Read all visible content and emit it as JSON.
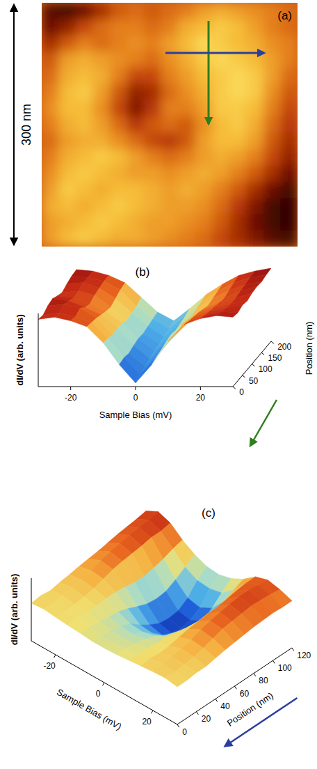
{
  "chart_data": [
    {
      "type": "heatmap",
      "title": "(a)",
      "annotations": [
        "300 nm"
      ],
      "zlim": [
        0,
        1
      ],
      "z": [
        [
          0.15,
          0.1,
          0.2,
          0.35,
          0.5,
          0.55,
          0.5,
          0.55,
          0.6,
          0.7,
          0.75,
          0.7,
          0.65,
          0.6,
          0.55
        ],
        [
          0.2,
          0.3,
          0.45,
          0.55,
          0.6,
          0.6,
          0.55,
          0.6,
          0.75,
          0.8,
          0.85,
          0.8,
          0.7,
          0.6,
          0.55
        ],
        [
          0.35,
          0.5,
          0.6,
          0.55,
          0.6,
          0.65,
          0.6,
          0.7,
          0.8,
          0.9,
          0.85,
          0.8,
          0.75,
          0.65,
          0.6
        ],
        [
          0.5,
          0.7,
          0.75,
          0.7,
          0.65,
          0.6,
          0.55,
          0.65,
          0.75,
          0.85,
          0.9,
          0.85,
          0.8,
          0.7,
          0.6
        ],
        [
          0.55,
          0.75,
          0.8,
          0.75,
          0.6,
          0.45,
          0.45,
          0.6,
          0.7,
          0.8,
          0.85,
          0.9,
          0.85,
          0.7,
          0.55
        ],
        [
          0.6,
          0.8,
          0.85,
          0.7,
          0.5,
          0.3,
          0.35,
          0.55,
          0.65,
          0.75,
          0.85,
          0.9,
          0.85,
          0.65,
          0.5
        ],
        [
          0.65,
          0.8,
          0.8,
          0.65,
          0.45,
          0.25,
          0.4,
          0.6,
          0.6,
          0.7,
          0.85,
          0.85,
          0.8,
          0.6,
          0.45
        ],
        [
          0.6,
          0.75,
          0.8,
          0.7,
          0.55,
          0.4,
          0.5,
          0.55,
          0.5,
          0.65,
          0.8,
          0.85,
          0.75,
          0.55,
          0.4
        ],
        [
          0.55,
          0.7,
          0.75,
          0.75,
          0.65,
          0.55,
          0.45,
          0.4,
          0.5,
          0.7,
          0.8,
          0.8,
          0.7,
          0.5,
          0.35
        ],
        [
          0.6,
          0.75,
          0.8,
          0.85,
          0.8,
          0.7,
          0.6,
          0.55,
          0.6,
          0.7,
          0.75,
          0.7,
          0.6,
          0.45,
          0.3
        ],
        [
          0.65,
          0.8,
          0.85,
          0.8,
          0.75,
          0.7,
          0.7,
          0.65,
          0.7,
          0.75,
          0.7,
          0.6,
          0.5,
          0.35,
          0.2
        ],
        [
          0.7,
          0.85,
          0.8,
          0.75,
          0.8,
          0.8,
          0.75,
          0.7,
          0.75,
          0.7,
          0.6,
          0.5,
          0.35,
          0.2,
          0.1
        ],
        [
          0.75,
          0.8,
          0.75,
          0.8,
          0.85,
          0.8,
          0.75,
          0.7,
          0.7,
          0.65,
          0.55,
          0.4,
          0.25,
          0.1,
          0.05
        ],
        [
          0.7,
          0.75,
          0.8,
          0.85,
          0.8,
          0.75,
          0.7,
          0.7,
          0.65,
          0.6,
          0.5,
          0.35,
          0.2,
          0.1,
          0.05
        ],
        [
          0.7,
          0.8,
          0.85,
          0.8,
          0.75,
          0.75,
          0.7,
          0.65,
          0.6,
          0.55,
          0.45,
          0.35,
          0.25,
          0.15,
          0.1
        ]
      ]
    },
    {
      "type": "surface",
      "title": "(b)",
      "xlabel": "Sample Bias (mV)",
      "ylabel": "Position (nm)",
      "zlabel": "dI/dV (arb. units)",
      "xlim": [
        -30,
        30
      ],
      "xticks": [
        -20,
        0,
        20
      ],
      "ylim": [
        0,
        200
      ],
      "yticks": [
        0,
        50,
        100,
        150,
        200
      ],
      "zlim": [
        0,
        1
      ],
      "x": [
        -30,
        -25,
        -20,
        -15,
        -10,
        -5,
        0,
        5,
        10,
        15,
        20,
        25,
        30
      ],
      "y": [
        0,
        25,
        50,
        75,
        100,
        125,
        150,
        175,
        200
      ],
      "z": [
        [
          0.92,
          0.95,
          0.9,
          0.82,
          0.6,
          0.3,
          0.05,
          0.3,
          0.62,
          0.85,
          0.93,
          0.97,
          0.95
        ],
        [
          0.9,
          0.93,
          0.88,
          0.8,
          0.58,
          0.32,
          0.1,
          0.33,
          0.6,
          0.82,
          0.9,
          0.95,
          0.93
        ],
        [
          0.95,
          0.97,
          0.92,
          0.78,
          0.55,
          0.3,
          0.12,
          0.35,
          0.58,
          0.8,
          0.88,
          0.92,
          0.96
        ],
        [
          0.97,
          0.94,
          0.85,
          0.75,
          0.57,
          0.33,
          0.15,
          0.38,
          0.62,
          0.78,
          0.86,
          0.9,
          0.94
        ],
        [
          0.93,
          0.9,
          0.82,
          0.72,
          0.55,
          0.35,
          0.18,
          0.4,
          0.6,
          0.75,
          0.84,
          0.9,
          0.97
        ],
        [
          0.9,
          0.92,
          0.86,
          0.7,
          0.52,
          0.34,
          0.2,
          0.38,
          0.58,
          0.72,
          0.82,
          0.92,
          0.98
        ],
        [
          0.94,
          0.96,
          0.88,
          0.74,
          0.54,
          0.36,
          0.22,
          0.4,
          0.6,
          0.74,
          0.85,
          0.93,
          0.97
        ],
        [
          0.97,
          0.95,
          0.9,
          0.78,
          0.56,
          0.38,
          0.25,
          0.42,
          0.62,
          0.76,
          0.88,
          0.95,
          0.99
        ],
        [
          0.98,
          0.96,
          0.9,
          0.8,
          0.6,
          0.4,
          0.28,
          0.45,
          0.64,
          0.78,
          0.9,
          0.96,
          1.0
        ]
      ]
    },
    {
      "type": "surface",
      "title": "(c)",
      "xlabel": "Sample Bias (mV)",
      "ylabel": "Position (nm)",
      "zlabel": "dI/dV (arb. units)",
      "xlim": [
        -30,
        30
      ],
      "xticks": [
        -20,
        0,
        20
      ],
      "ylim": [
        0,
        120
      ],
      "yticks": [
        0,
        20,
        40,
        60,
        80,
        100,
        120
      ],
      "zlim": [
        0,
        1
      ],
      "x": [
        -30,
        -25,
        -20,
        -15,
        -10,
        -5,
        0,
        5,
        10,
        15,
        20,
        25,
        30
      ],
      "y": [
        0,
        10,
        20,
        30,
        40,
        50,
        60,
        70,
        80,
        90,
        100,
        110,
        120
      ],
      "z": [
        [
          0.6,
          0.62,
          0.6,
          0.58,
          0.57,
          0.55,
          0.55,
          0.56,
          0.58,
          0.6,
          0.62,
          0.63,
          0.6
        ],
        [
          0.62,
          0.6,
          0.58,
          0.6,
          0.56,
          0.54,
          0.53,
          0.55,
          0.57,
          0.62,
          0.65,
          0.62,
          0.6
        ],
        [
          0.6,
          0.63,
          0.6,
          0.57,
          0.55,
          0.52,
          0.5,
          0.53,
          0.56,
          0.6,
          0.66,
          0.64,
          0.62
        ],
        [
          0.63,
          0.65,
          0.62,
          0.58,
          0.52,
          0.48,
          0.46,
          0.5,
          0.55,
          0.62,
          0.68,
          0.66,
          0.62
        ],
        [
          0.65,
          0.68,
          0.65,
          0.6,
          0.5,
          0.42,
          0.4,
          0.45,
          0.55,
          0.65,
          0.72,
          0.7,
          0.65
        ],
        [
          0.68,
          0.72,
          0.7,
          0.6,
          0.45,
          0.3,
          0.28,
          0.35,
          0.52,
          0.68,
          0.78,
          0.75,
          0.68
        ],
        [
          0.7,
          0.78,
          0.75,
          0.58,
          0.38,
          0.2,
          0.15,
          0.25,
          0.48,
          0.7,
          0.82,
          0.8,
          0.7
        ],
        [
          0.72,
          0.82,
          0.78,
          0.55,
          0.32,
          0.12,
          0.08,
          0.18,
          0.45,
          0.72,
          0.85,
          0.82,
          0.72
        ],
        [
          0.75,
          0.85,
          0.8,
          0.55,
          0.3,
          0.1,
          0.05,
          0.15,
          0.42,
          0.72,
          0.88,
          0.84,
          0.74
        ],
        [
          0.78,
          0.88,
          0.82,
          0.58,
          0.32,
          0.12,
          0.08,
          0.18,
          0.45,
          0.75,
          0.9,
          0.86,
          0.75
        ],
        [
          0.8,
          0.9,
          0.85,
          0.62,
          0.4,
          0.22,
          0.18,
          0.28,
          0.5,
          0.78,
          0.9,
          0.85,
          0.76
        ],
        [
          0.82,
          0.92,
          0.85,
          0.68,
          0.5,
          0.4,
          0.38,
          0.42,
          0.58,
          0.8,
          0.88,
          0.84,
          0.75
        ],
        [
          0.85,
          0.95,
          0.88,
          0.72,
          0.6,
          0.52,
          0.5,
          0.55,
          0.65,
          0.8,
          0.86,
          0.82,
          0.75
        ]
      ]
    }
  ]
}
